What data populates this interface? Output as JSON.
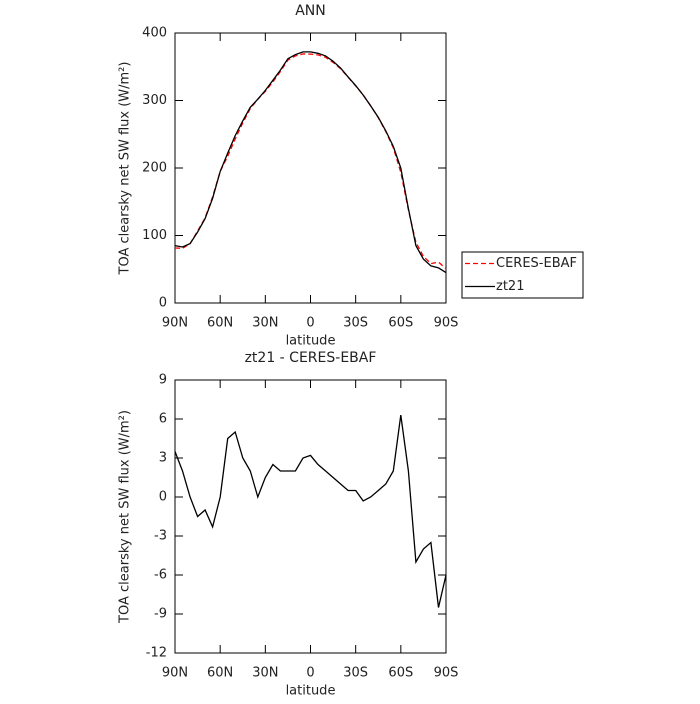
{
  "chart_data": [
    {
      "type": "line",
      "title": "ANN",
      "xlabel": "latitude",
      "ylabel": "TOA clearsky net SW flux (W/m²)",
      "x": [
        90,
        85,
        80,
        75,
        70,
        65,
        60,
        55,
        50,
        45,
        40,
        35,
        30,
        25,
        20,
        15,
        10,
        5,
        0,
        -5,
        -10,
        -15,
        -20,
        -25,
        -30,
        -35,
        -40,
        -45,
        -50,
        -55,
        -60,
        -65,
        -70,
        -75,
        -80,
        -85,
        -90
      ],
      "series": [
        {
          "name": "CERES-EBAF",
          "color": "#ff0000",
          "style": "dashed",
          "values": [
            81.5,
            81,
            88,
            106.5,
            126,
            157.3,
            195,
            217.5,
            243,
            267,
            288,
            302,
            313.5,
            327.5,
            343,
            360,
            366,
            369,
            368.8,
            367.5,
            364,
            356.5,
            347,
            334.5,
            321.5,
            308.3,
            292,
            274.5,
            254,
            230,
            193.7,
            138,
            90,
            69,
            58.5,
            60.5,
            51
          ]
        },
        {
          "name": "zt21",
          "color": "#000000",
          "style": "solid",
          "values": [
            85,
            83,
            88,
            105,
            125,
            155,
            195,
            222,
            248,
            270,
            290,
            302,
            315,
            330,
            345,
            362,
            368,
            372,
            372,
            370,
            366,
            358,
            348,
            335,
            322,
            308,
            292,
            275,
            255,
            232,
            200,
            140,
            85,
            65,
            55,
            52,
            45
          ]
        }
      ],
      "xlim": [
        90,
        -90
      ],
      "xticks": [
        {
          "value": 90,
          "label": "90N"
        },
        {
          "value": 60,
          "label": "60N"
        },
        {
          "value": 30,
          "label": "30N"
        },
        0,
        {
          "value": -30,
          "label": "30S"
        },
        {
          "value": -60,
          "label": "60S"
        },
        {
          "value": -90,
          "label": "90S"
        }
      ],
      "ylim": [
        0,
        400
      ],
      "yticks": [
        0,
        100,
        200,
        300,
        400
      ],
      "legend": "right"
    },
    {
      "type": "line",
      "title": "zt21 - CERES-EBAF",
      "xlabel": "latitude",
      "ylabel": "TOA clearsky net SW flux (W/m²)",
      "x": [
        90,
        85,
        80,
        75,
        70,
        65,
        60,
        55,
        50,
        45,
        40,
        35,
        30,
        25,
        20,
        15,
        10,
        5,
        0,
        -5,
        -10,
        -15,
        -20,
        -25,
        -30,
        -35,
        -40,
        -45,
        -50,
        -55,
        -60,
        -65,
        -70,
        -75,
        -80,
        -85,
        -90
      ],
      "series": [
        {
          "color": "#000000",
          "style": "solid",
          "values": [
            3.5,
            2,
            0,
            -1.5,
            -1,
            -2.3,
            0,
            4.5,
            5,
            3,
            2,
            0,
            1.5,
            2.5,
            2,
            2,
            2,
            3,
            3.2,
            2.5,
            2,
            1.5,
            1,
            0.5,
            0.5,
            -0.3,
            0,
            0.5,
            1,
            2,
            6.3,
            2,
            -5,
            -4,
            -3.5,
            -8.5,
            -6
          ]
        }
      ],
      "xlim": [
        90,
        -90
      ],
      "xticks": [
        {
          "value": 90,
          "label": "90N"
        },
        {
          "value": 60,
          "label": "60N"
        },
        {
          "value": 30,
          "label": "30N"
        },
        0,
        {
          "value": -30,
          "label": "30S"
        },
        {
          "value": -60,
          "label": "60S"
        },
        {
          "value": -90,
          "label": "90S"
        }
      ],
      "ylim": [
        -12,
        9
      ],
      "yticks": [
        -12,
        -9,
        -6,
        -3,
        0,
        3,
        6,
        9
      ]
    }
  ]
}
